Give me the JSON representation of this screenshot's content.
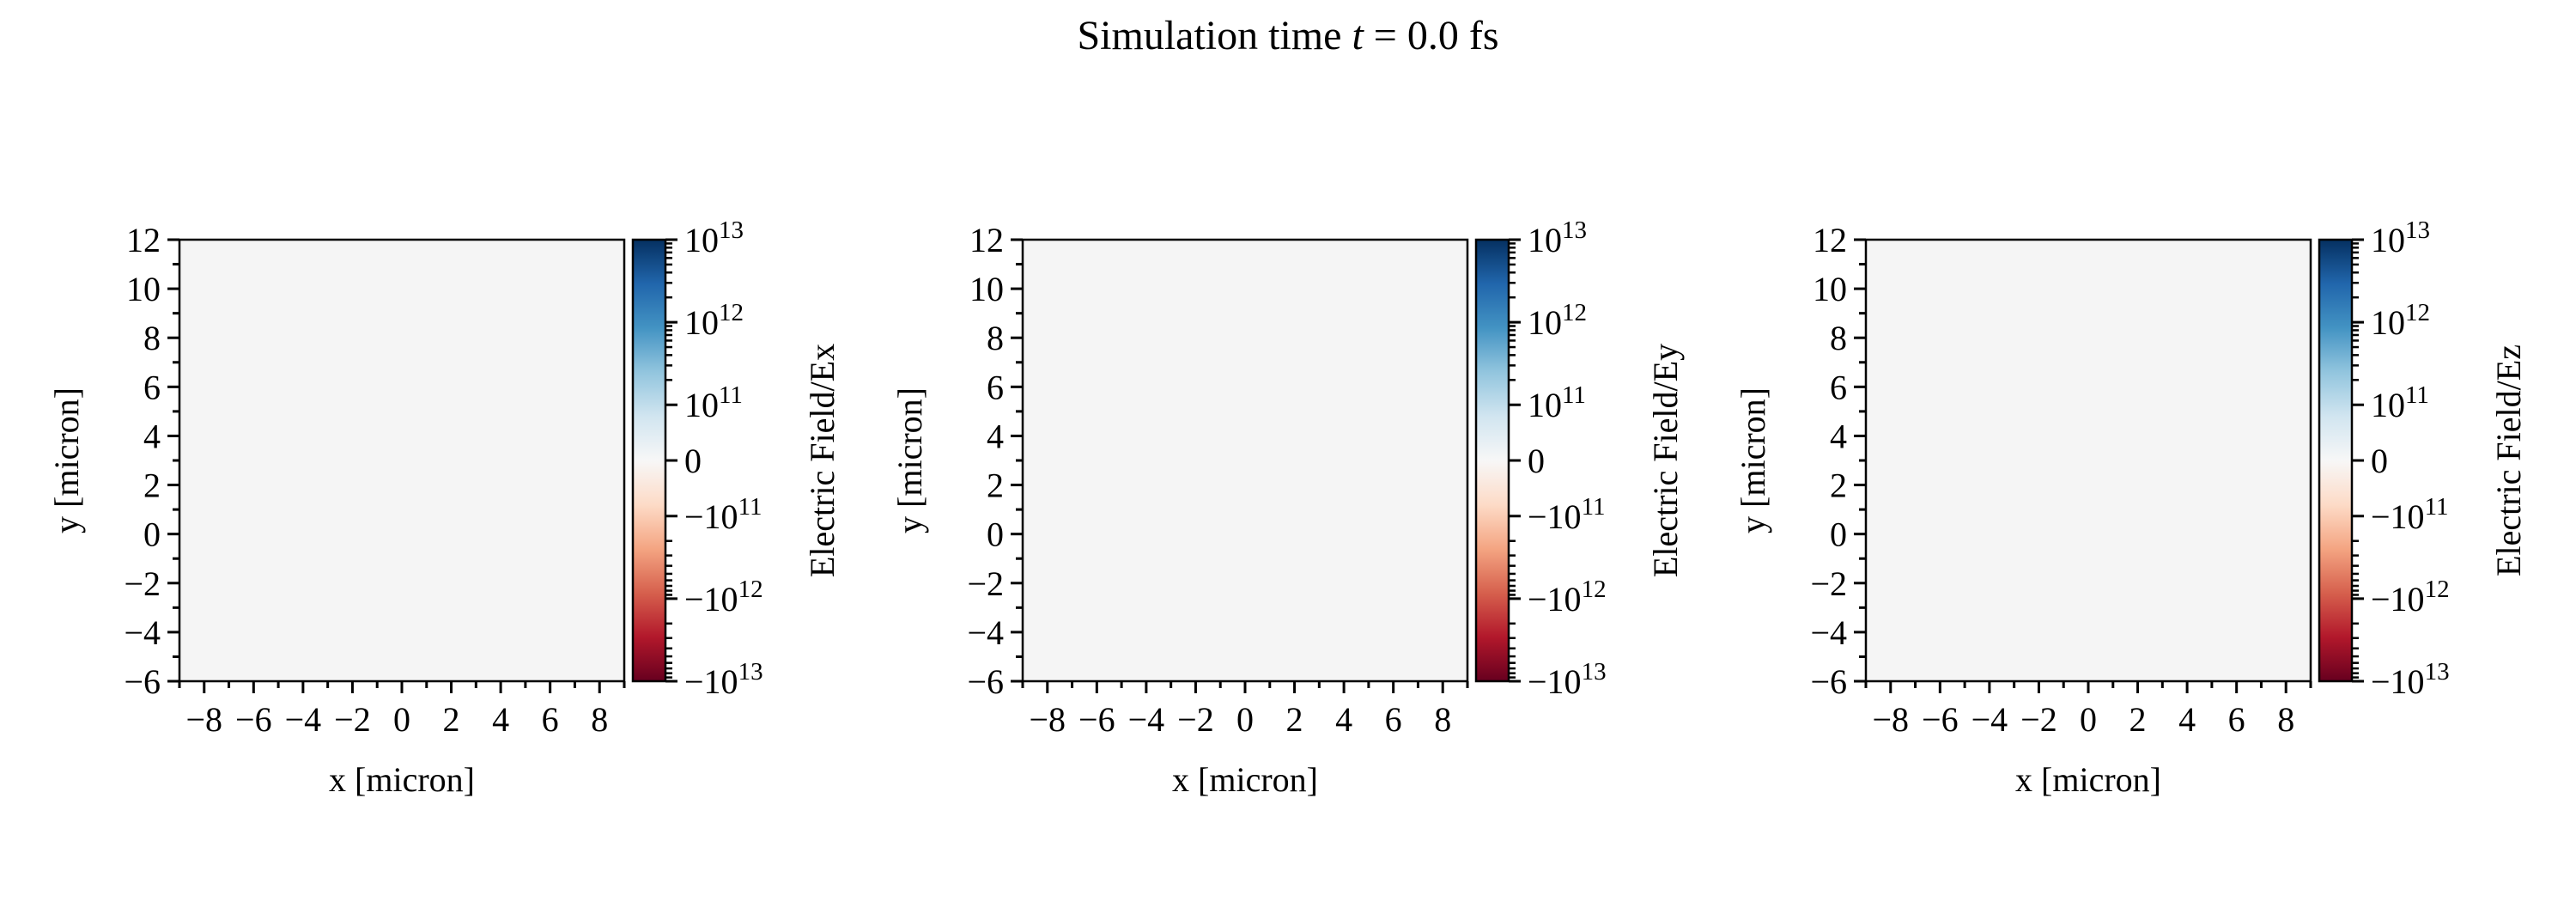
{
  "figure": {
    "title_prefix": "Simulation time ",
    "title_var": "t",
    "title_suffix": " = 0.0 fs"
  },
  "colormap": {
    "name": "RdBu",
    "stops": [
      "#67001f",
      "#b2182b",
      "#d6604d",
      "#f4a582",
      "#fddbc7",
      "#f7f7f7",
      "#d1e5f0",
      "#92c5de",
      "#4393c3",
      "#2166ac",
      "#053061"
    ],
    "field_color": "#f5f5f5"
  },
  "chart_data": [
    {
      "type": "heatmap",
      "field": "Ex",
      "values": "uniform 0",
      "xlabel": "x [micron]",
      "ylabel": "y [micron]",
      "xlim": [
        -9,
        9
      ],
      "ylim": [
        -6,
        12
      ],
      "xticks": [
        "−8",
        "−6",
        "−4",
        "−2",
        "0",
        "2",
        "4",
        "6",
        "8"
      ],
      "yticks": [
        "−6",
        "−4",
        "−2",
        "0",
        "2",
        "4",
        "6",
        "8",
        "10",
        "12"
      ],
      "colorbar": {
        "label": "Electric Field/Ex",
        "scale": "symlog",
        "range": [
          -10000000000000.0,
          10000000000000.0
        ],
        "ticks": [
          {
            "value": 10000000000000.0,
            "text": "10",
            "sup": "13"
          },
          {
            "value": 1000000000000.0,
            "text": "10",
            "sup": "12"
          },
          {
            "value": 100000000000.0,
            "text": "10",
            "sup": "11"
          },
          {
            "value": 0,
            "text": "0",
            "sup": ""
          },
          {
            "value": -100000000000.0,
            "text": "−10",
            "sup": "11"
          },
          {
            "value": -1000000000000.0,
            "text": "−10",
            "sup": "12"
          },
          {
            "value": -10000000000000.0,
            "text": "−10",
            "sup": "13"
          }
        ]
      }
    },
    {
      "type": "heatmap",
      "field": "Ey",
      "values": "uniform 0",
      "xlabel": "x [micron]",
      "ylabel": "y [micron]",
      "xlim": [
        -9,
        9
      ],
      "ylim": [
        -6,
        12
      ],
      "xticks": [
        "−8",
        "−6",
        "−4",
        "−2",
        "0",
        "2",
        "4",
        "6",
        "8"
      ],
      "yticks": [
        "−6",
        "−4",
        "−2",
        "0",
        "2",
        "4",
        "6",
        "8",
        "10",
        "12"
      ],
      "colorbar": {
        "label": "Electric Field/Ey",
        "scale": "symlog",
        "range": [
          -10000000000000.0,
          10000000000000.0
        ],
        "ticks": [
          {
            "value": 10000000000000.0,
            "text": "10",
            "sup": "13"
          },
          {
            "value": 1000000000000.0,
            "text": "10",
            "sup": "12"
          },
          {
            "value": 100000000000.0,
            "text": "10",
            "sup": "11"
          },
          {
            "value": 0,
            "text": "0",
            "sup": ""
          },
          {
            "value": -100000000000.0,
            "text": "−10",
            "sup": "11"
          },
          {
            "value": -1000000000000.0,
            "text": "−10",
            "sup": "12"
          },
          {
            "value": -10000000000000.0,
            "text": "−10",
            "sup": "13"
          }
        ]
      }
    },
    {
      "type": "heatmap",
      "field": "Ez",
      "values": "uniform 0",
      "xlabel": "x [micron]",
      "ylabel": "y [micron]",
      "xlim": [
        -9,
        9
      ],
      "ylim": [
        -6,
        12
      ],
      "xticks": [
        "−8",
        "−6",
        "−4",
        "−2",
        "0",
        "2",
        "4",
        "6",
        "8"
      ],
      "yticks": [
        "−6",
        "−4",
        "−2",
        "0",
        "2",
        "4",
        "6",
        "8",
        "10",
        "12"
      ],
      "colorbar": {
        "label": "Electric Field/Ez",
        "scale": "symlog",
        "range": [
          -10000000000000.0,
          10000000000000.0
        ],
        "ticks": [
          {
            "value": 10000000000000.0,
            "text": "10",
            "sup": "13"
          },
          {
            "value": 1000000000000.0,
            "text": "10",
            "sup": "12"
          },
          {
            "value": 100000000000.0,
            "text": "10",
            "sup": "11"
          },
          {
            "value": 0,
            "text": "0",
            "sup": ""
          },
          {
            "value": -100000000000.0,
            "text": "−10",
            "sup": "11"
          },
          {
            "value": -1000000000000.0,
            "text": "−10",
            "sup": "12"
          },
          {
            "value": -10000000000000.0,
            "text": "−10",
            "sup": "13"
          }
        ]
      }
    }
  ]
}
